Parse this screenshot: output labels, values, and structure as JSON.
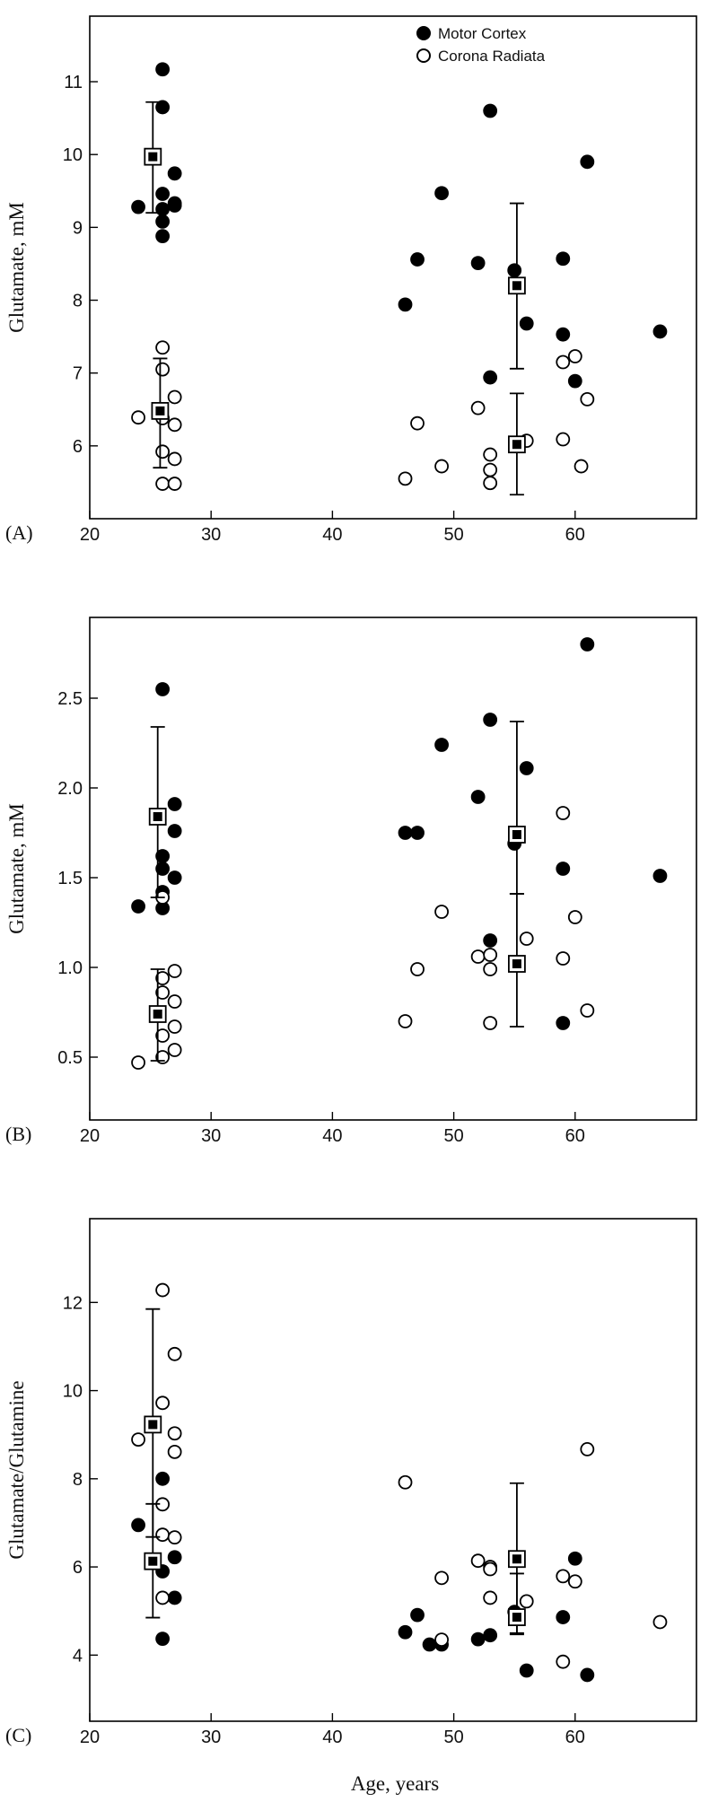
{
  "legend": {
    "motor_cortex": "Motor Cortex",
    "corona_radiata": "Corona Radiata"
  },
  "colors": {
    "motor_cortex": "#000000",
    "corona_radiata": "#ffffff",
    "axes": "#000000"
  },
  "xlabel": "Age, years",
  "chart_data": [
    {
      "type": "scatter",
      "panel_label": "(A)",
      "ylabel": "Glutamate, mM",
      "xlim": [
        20,
        70
      ],
      "ylim": [
        5,
        11.9
      ],
      "x_ticks": [
        20,
        30,
        40,
        50,
        60
      ],
      "y_ticks": [
        6,
        7,
        8,
        9,
        10,
        11
      ],
      "y_tick_labels": [
        "6",
        "7",
        "8",
        "9",
        "10",
        "11"
      ],
      "series": [
        {
          "name": "Motor Cortex",
          "marker": "filled-circle",
          "points": [
            [
              24,
              9.28
            ],
            [
              26,
              11.17
            ],
            [
              26,
              10.65
            ],
            [
              26,
              9.46
            ],
            [
              26,
              9.25
            ],
            [
              26,
              9.08
            ],
            [
              26,
              8.88
            ],
            [
              27,
              9.74
            ],
            [
              27,
              9.33
            ],
            [
              27,
              9.3
            ],
            [
              46,
              7.94
            ],
            [
              47,
              8.56
            ],
            [
              49,
              9.47
            ],
            [
              52,
              8.51
            ],
            [
              53,
              10.6
            ],
            [
              53,
              6.94
            ],
            [
              55,
              8.41
            ],
            [
              56,
              7.68
            ],
            [
              59,
              8.57
            ],
            [
              59,
              7.53
            ],
            [
              60,
              6.89
            ],
            [
              61,
              9.9
            ],
            [
              67,
              7.57
            ]
          ]
        },
        {
          "name": "Corona Radiata",
          "marker": "open-circle",
          "points": [
            [
              24,
              6.39
            ],
            [
              26,
              7.35
            ],
            [
              26,
              7.05
            ],
            [
              26,
              6.38
            ],
            [
              26,
              5.92
            ],
            [
              26,
              5.48
            ],
            [
              27,
              6.67
            ],
            [
              27,
              6.29
            ],
            [
              27,
              5.82
            ],
            [
              27,
              5.48
            ],
            [
              46,
              5.55
            ],
            [
              47,
              6.31
            ],
            [
              49,
              5.72
            ],
            [
              52,
              6.52
            ],
            [
              53,
              5.88
            ],
            [
              53,
              5.67
            ],
            [
              53,
              5.49
            ],
            [
              56,
              6.07
            ],
            [
              59,
              7.15
            ],
            [
              59,
              6.09
            ],
            [
              60,
              7.23
            ],
            [
              60.5,
              5.72
            ],
            [
              61,
              6.64
            ]
          ]
        }
      ],
      "group_means": [
        {
          "group": "Motor Cortex",
          "age": 25.2,
          "mean": 9.97,
          "lower": 9.2,
          "upper": 10.72
        },
        {
          "group": "Corona Radiata",
          "age": 25.8,
          "mean": 6.48,
          "lower": 5.7,
          "upper": 7.2
        },
        {
          "group": "Motor Cortex",
          "age": 55.2,
          "mean": 8.2,
          "lower": 7.06,
          "upper": 9.33
        },
        {
          "group": "Corona Radiata",
          "age": 55.2,
          "mean": 6.02,
          "lower": 5.33,
          "upper": 6.72
        }
      ]
    },
    {
      "type": "scatter",
      "panel_label": "(B)",
      "ylabel": "Glutamate, mM",
      "xlim": [
        20,
        70
      ],
      "ylim": [
        0.15,
        2.95
      ],
      "x_ticks": [
        20,
        30,
        40,
        50,
        60
      ],
      "y_ticks": [
        0.5,
        1.0,
        1.5,
        2.0,
        2.5
      ],
      "y_tick_labels": [
        "0.5",
        "1.0",
        "1.5",
        "2.0",
        "2.5"
      ],
      "series": [
        {
          "name": "Motor Cortex",
          "marker": "filled-circle",
          "points": [
            [
              24,
              1.34
            ],
            [
              26,
              2.55
            ],
            [
              26,
              1.62
            ],
            [
              26,
              1.55
            ],
            [
              26,
              1.42
            ],
            [
              26,
              1.33
            ],
            [
              27,
              1.91
            ],
            [
              27,
              1.76
            ],
            [
              27,
              1.5
            ],
            [
              46,
              1.75
            ],
            [
              47,
              1.75
            ],
            [
              49,
              2.24
            ],
            [
              52,
              1.95
            ],
            [
              53,
              2.38
            ],
            [
              53,
              1.15
            ],
            [
              55,
              1.69
            ],
            [
              56,
              2.11
            ],
            [
              59,
              1.55
            ],
            [
              59,
              0.69
            ],
            [
              61,
              2.8
            ],
            [
              67,
              1.51
            ]
          ]
        },
        {
          "name": "Corona Radiata",
          "marker": "open-circle",
          "points": [
            [
              24,
              0.47
            ],
            [
              26,
              1.39
            ],
            [
              26,
              0.94
            ],
            [
              26,
              0.86
            ],
            [
              26,
              0.62
            ],
            [
              26,
              0.5
            ],
            [
              27,
              0.98
            ],
            [
              27,
              0.81
            ],
            [
              27,
              0.67
            ],
            [
              27,
              0.54
            ],
            [
              46,
              0.7
            ],
            [
              47,
              0.99
            ],
            [
              49,
              1.31
            ],
            [
              52,
              1.06
            ],
            [
              53,
              1.07
            ],
            [
              53,
              0.99
            ],
            [
              53,
              0.69
            ],
            [
              56,
              1.16
            ],
            [
              59,
              1.86
            ],
            [
              59,
              1.05
            ],
            [
              60,
              1.28
            ],
            [
              61,
              0.76
            ]
          ]
        }
      ],
      "group_means": [
        {
          "group": "Motor Cortex",
          "age": 25.6,
          "mean": 1.84,
          "lower": 1.39,
          "upper": 2.34
        },
        {
          "group": "Corona Radiata",
          "age": 25.6,
          "mean": 0.74,
          "lower": 0.48,
          "upper": 0.99
        },
        {
          "group": "Motor Cortex",
          "age": 55.2,
          "mean": 1.74,
          "lower": 1.41,
          "upper": 2.37
        },
        {
          "group": "Corona Radiata",
          "age": 55.2,
          "mean": 1.02,
          "lower": 0.67,
          "upper": 1.41
        }
      ]
    },
    {
      "type": "scatter",
      "panel_label": "(C)",
      "ylabel": "Glutamate/Glutamine",
      "xlim": [
        20,
        70
      ],
      "ylim": [
        2.5,
        13.9
      ],
      "x_ticks": [
        20,
        30,
        40,
        50,
        60
      ],
      "y_ticks": [
        4,
        6,
        8,
        10,
        12
      ],
      "y_tick_labels": [
        "4",
        "6",
        "8",
        "10",
        "12"
      ],
      "series": [
        {
          "name": "Motor Cortex",
          "marker": "filled-circle",
          "points": [
            [
              24,
              6.95
            ],
            [
              26,
              8.0
            ],
            [
              26,
              5.9
            ],
            [
              26,
              4.37
            ],
            [
              27,
              6.22
            ],
            [
              27,
              5.3
            ],
            [
              46,
              4.52
            ],
            [
              47,
              4.91
            ],
            [
              48,
              4.24
            ],
            [
              49,
              4.24
            ],
            [
              52,
              4.36
            ],
            [
              53,
              4.45
            ],
            [
              55,
              4.98
            ],
            [
              56,
              3.65
            ],
            [
              59,
              4.86
            ],
            [
              60,
              6.19
            ],
            [
              61,
              3.55
            ]
          ]
        },
        {
          "name": "Corona Radiata",
          "marker": "open-circle",
          "points": [
            [
              24,
              8.89
            ],
            [
              26,
              12.28
            ],
            [
              26,
              9.72
            ],
            [
              26,
              7.42
            ],
            [
              26,
              6.73
            ],
            [
              26,
              5.3
            ],
            [
              27,
              10.83
            ],
            [
              27,
              9.03
            ],
            [
              27,
              8.61
            ],
            [
              27,
              6.67
            ],
            [
              46,
              7.92
            ],
            [
              49,
              5.75
            ],
            [
              49,
              4.35
            ],
            [
              52,
              6.14
            ],
            [
              53,
              6.0
            ],
            [
              53,
              5.95
            ],
            [
              53,
              5.3
            ],
            [
              56,
              5.22
            ],
            [
              59,
              5.79
            ],
            [
              59,
              3.85
            ],
            [
              60,
              5.67
            ],
            [
              61,
              8.67
            ],
            [
              67,
              4.75
            ]
          ]
        }
      ],
      "group_means": [
        {
          "group": "Corona Radiata",
          "age": 25.2,
          "mean": 9.23,
          "lower": 6.68,
          "upper": 11.85
        },
        {
          "group": "Motor Cortex",
          "age": 25.2,
          "mean": 6.13,
          "lower": 4.85,
          "upper": 7.43
        },
        {
          "group": "Corona Radiata",
          "age": 55.2,
          "mean": 6.18,
          "lower": 4.47,
          "upper": 7.9
        },
        {
          "group": "Motor Cortex",
          "age": 55.2,
          "mean": 4.86,
          "lower": 4.5,
          "upper": 5.85
        }
      ]
    }
  ]
}
